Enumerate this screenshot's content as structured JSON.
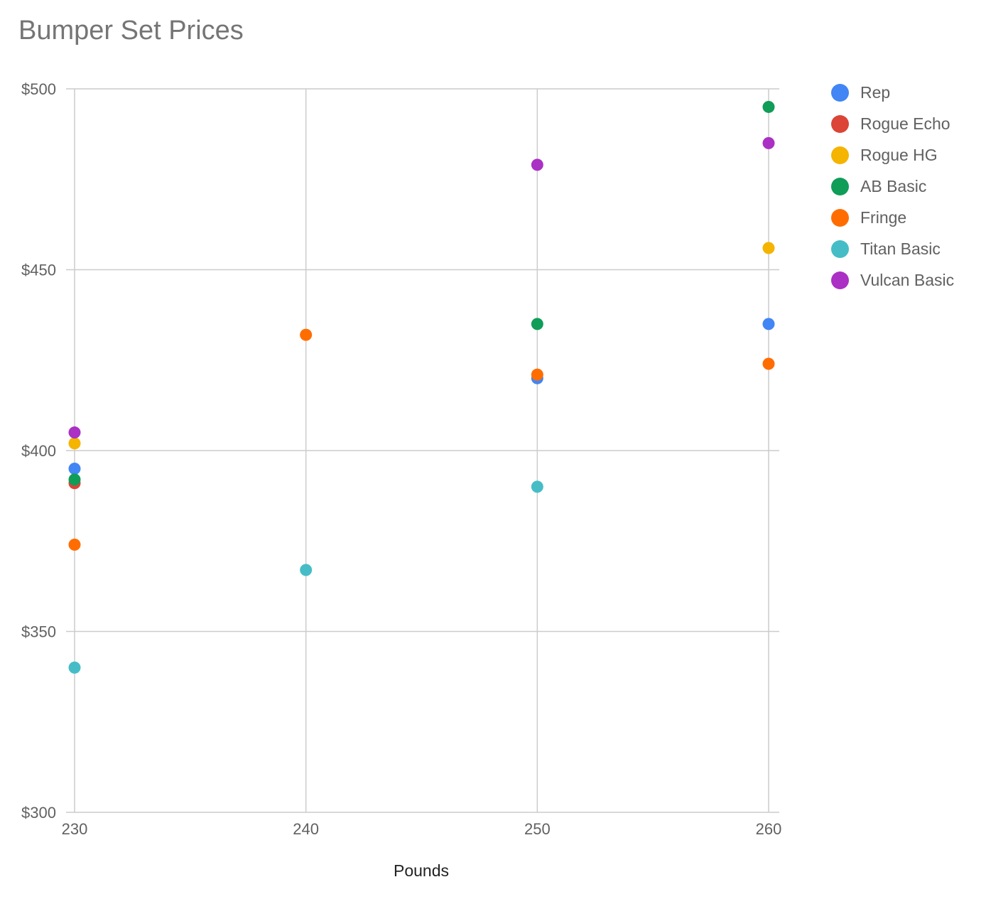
{
  "chart_data": {
    "type": "scatter",
    "title": "Bumper Set Prices",
    "xlabel": "Pounds",
    "ylabel": "",
    "xlim": [
      230,
      260
    ],
    "ylim": [
      300,
      500
    ],
    "x_ticks": [
      "230",
      "240",
      "250",
      "260"
    ],
    "y_ticks": [
      "$300",
      "$350",
      "$400",
      "$450",
      "$500"
    ],
    "grid": true,
    "legend_position": "right",
    "series": [
      {
        "name": "Rep",
        "color": "#4285F4",
        "points": [
          {
            "x": 230,
            "y": 395
          },
          {
            "x": 250,
            "y": 420
          },
          {
            "x": 260,
            "y": 435
          }
        ]
      },
      {
        "name": "Rogue Echo",
        "color": "#DB4437",
        "points": [
          {
            "x": 230,
            "y": 391
          }
        ]
      },
      {
        "name": "Rogue HG",
        "color": "#F4B400",
        "points": [
          {
            "x": 230,
            "y": 402
          },
          {
            "x": 260,
            "y": 456
          }
        ]
      },
      {
        "name": "AB Basic",
        "color": "#0F9D58",
        "points": [
          {
            "x": 230,
            "y": 392
          },
          {
            "x": 250,
            "y": 435
          },
          {
            "x": 260,
            "y": 495
          }
        ]
      },
      {
        "name": "Fringe",
        "color": "#FF6D00",
        "points": [
          {
            "x": 230,
            "y": 374
          },
          {
            "x": 240,
            "y": 432
          },
          {
            "x": 250,
            "y": 421
          },
          {
            "x": 260,
            "y": 424
          }
        ]
      },
      {
        "name": "Titan Basic",
        "color": "#46BDC6",
        "points": [
          {
            "x": 230,
            "y": 340
          },
          {
            "x": 240,
            "y": 367
          },
          {
            "x": 250,
            "y": 390
          }
        ]
      },
      {
        "name": "Vulcan Basic",
        "color": "#AB30C4",
        "points": [
          {
            "x": 230,
            "y": 405
          },
          {
            "x": 250,
            "y": 479
          },
          {
            "x": 260,
            "y": 485
          }
        ]
      }
    ]
  }
}
